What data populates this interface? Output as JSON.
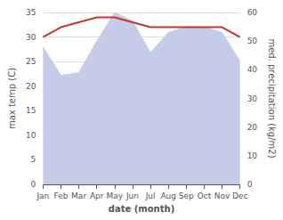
{
  "chart_data": {
    "type": "line",
    "categories": [
      "Jan",
      "Feb",
      "Mar",
      "Apr",
      "May",
      "Jun",
      "Jul",
      "Aug",
      "Sep",
      "Oct",
      "Nov",
      "Dec"
    ],
    "xlabel": "date (month)",
    "ylabel": "max temp (C)",
    "y2label": "med. precipitation (kg/m2)",
    "series": [
      {
        "type": "area",
        "color": "#c5cce8",
        "axis": "y2",
        "values": [
          48,
          38,
          39,
          50,
          60,
          57,
          46,
          53,
          55,
          55,
          53,
          43
        ]
      },
      {
        "type": "line",
        "color": "#c0392b",
        "values": [
          30,
          32,
          33,
          34,
          34,
          33,
          32,
          32,
          32,
          32,
          32,
          30
        ]
      }
    ],
    "ylim": [
      0,
      35
    ],
    "yticks": [
      0,
      5,
      10,
      15,
      20,
      25,
      30,
      35
    ],
    "y2lim": [
      0,
      60
    ],
    "y2ticks": [
      0,
      10,
      20,
      30,
      40,
      50,
      60
    ],
    "grid": true
  }
}
